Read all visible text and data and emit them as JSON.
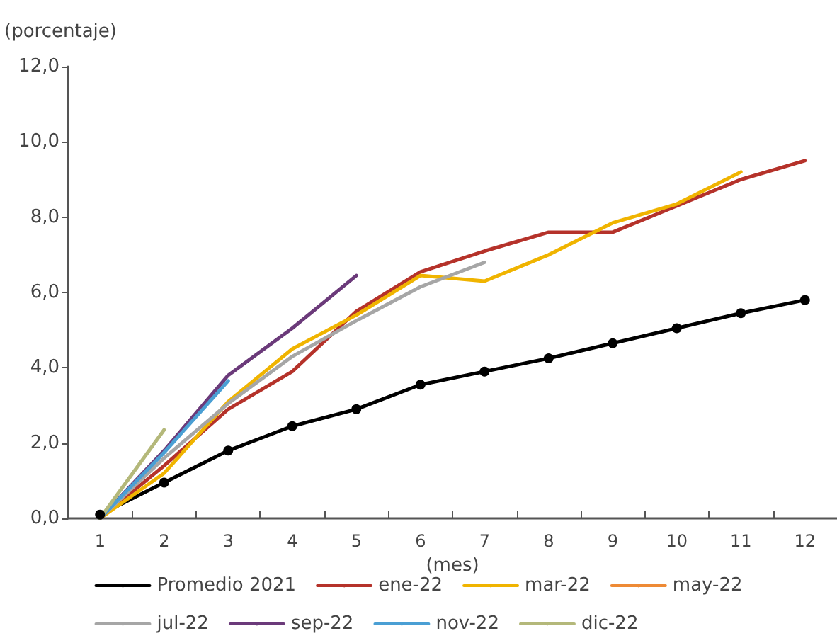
{
  "chart_data": {
    "type": "line",
    "ylabel": "(porcentaje)",
    "xlabel": "(mes)",
    "x": [
      1,
      2,
      3,
      4,
      5,
      6,
      7,
      8,
      9,
      10,
      11,
      12
    ],
    "xlim": [
      0.5,
      12.5
    ],
    "xticks": [
      1,
      2,
      3,
      4,
      5,
      6,
      7,
      8,
      9,
      10,
      11,
      12,
      {
        "value": 1.5,
        "label": null
      },
      {
        "value": 2.5,
        "label": null
      },
      {
        "value": 3.5,
        "label": null
      },
      {
        "value": 4.5,
        "label": null
      },
      {
        "value": 5.5,
        "label": null
      },
      {
        "value": 6.5,
        "label": null
      },
      {
        "value": 7.5,
        "label": null
      },
      {
        "value": 8.5,
        "label": null
      },
      {
        "value": 9.5,
        "label": null
      },
      {
        "value": 10.5,
        "label": null
      },
      {
        "value": 11.5,
        "label": null
      }
    ],
    "series": [
      {
        "name": "Promedio 2021",
        "color": "#000000",
        "marker": "circle",
        "values": [
          0.1,
          0.95,
          1.8,
          2.45,
          2.9,
          3.55,
          3.9,
          4.25,
          4.65,
          5.05,
          5.45,
          5.8
        ]
      },
      {
        "name": "ene-22",
        "color": "#b5322a",
        "values": [
          0,
          1.4,
          2.9,
          3.9,
          5.5,
          6.55,
          7.1,
          7.6,
          7.6,
          8.3,
          9.0,
          9.5
        ]
      },
      {
        "name": "mar-22",
        "color": "#f0b400",
        "values": [
          0,
          1.2,
          3.1,
          4.5,
          5.4,
          6.45,
          6.3,
          7.0,
          7.85,
          8.35,
          9.2,
          null
        ]
      },
      {
        "name": "may-22",
        "color": "#ee8a35",
        "values": [
          null,
          null,
          null,
          null,
          null,
          null,
          null,
          null,
          null,
          null,
          null,
          null
        ]
      },
      {
        "name": "jul-22",
        "color": "#a6a6a6",
        "values": [
          0,
          1.6,
          3.05,
          4.3,
          5.25,
          6.15,
          6.8,
          null,
          null,
          null,
          null,
          null
        ]
      },
      {
        "name": "sep-22",
        "color": "#6b3a7a",
        "values": [
          0,
          1.8,
          3.8,
          5.05,
          6.45,
          null,
          null,
          null,
          null,
          null,
          null,
          null
        ]
      },
      {
        "name": "nov-22",
        "color": "#4a9fd4",
        "values": [
          0,
          1.75,
          3.65,
          null,
          null,
          null,
          null,
          null,
          null,
          null,
          null,
          null
        ]
      },
      {
        "name": "dic-22",
        "color": "#b4b87a",
        "values": [
          0,
          2.35,
          null,
          null,
          null,
          null,
          null,
          null,
          null,
          null,
          null,
          null
        ]
      }
    ],
    "ylim": [
      0,
      12
    ],
    "yticks": [
      {
        "value": 0,
        "label": "0,0"
      },
      {
        "value": 2,
        "label": "2,0"
      },
      {
        "value": 4,
        "label": "4,0"
      },
      {
        "value": 6,
        "label": "6,0"
      },
      {
        "value": 8,
        "label": "8,0"
      },
      {
        "value": 10,
        "label": "10,0"
      },
      {
        "value": 12,
        "label": "12,0"
      }
    ],
    "grid": false,
    "legend": "bottom",
    "marker": "none",
    "line_style": "solid"
  }
}
